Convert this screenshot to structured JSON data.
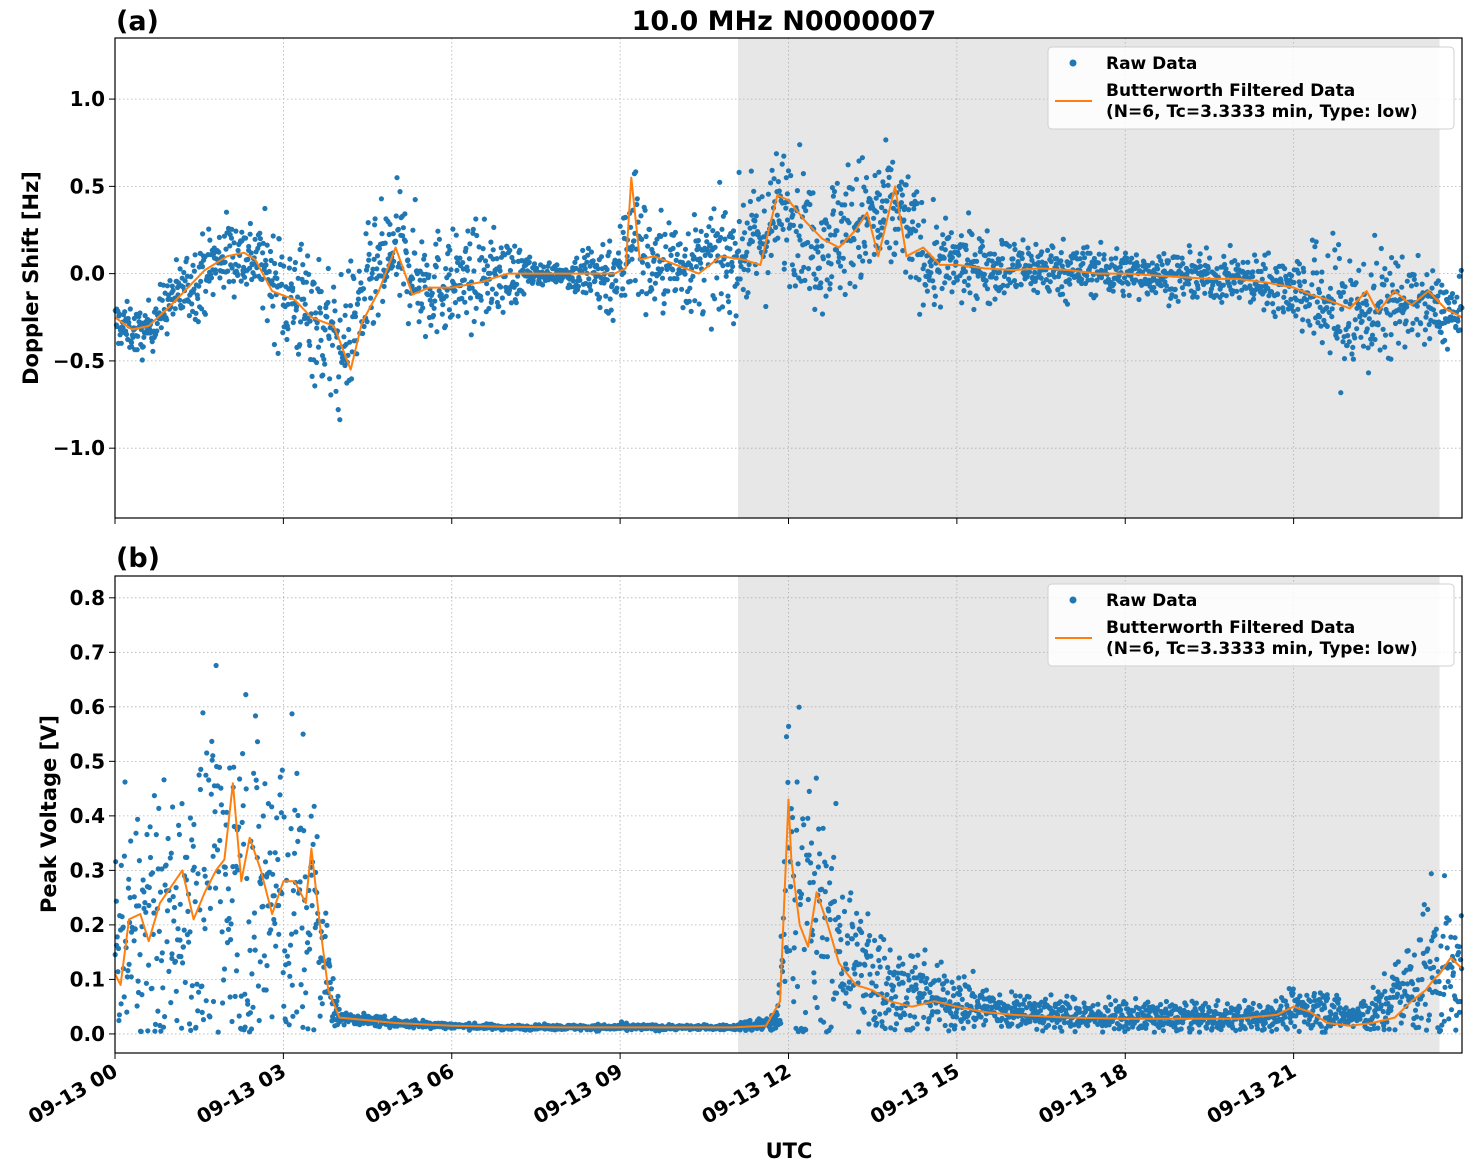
{
  "figure": {
    "title": "10.0 MHz N0000007",
    "xlabel": "UTC",
    "colors": {
      "raw": "#1f77b4",
      "filtered": "#ff7f0e",
      "shade": "#e7e7e7",
      "grid": "#b0b0b0"
    }
  },
  "chart_data": [
    {
      "type": "scatter",
      "panel_label": "(a)",
      "ylabel": "Doppler Shift [Hz]",
      "xlim": [
        0,
        24
      ],
      "ylim": [
        -1.4,
        1.35
      ],
      "yticks": [
        1.0,
        0.5,
        0.0,
        -0.5,
        -1.0
      ],
      "ytick_labels": [
        "1.0",
        "0.5",
        "0.0",
        "−0.5",
        "−1.0"
      ],
      "xticks": [
        0,
        3,
        6,
        9,
        12,
        15,
        18,
        21
      ],
      "xtick_labels": [
        "09-13 00",
        "09-13 03",
        "09-13 06",
        "09-13 09",
        "09-13 12",
        "09-13 15",
        "09-13 18",
        "09-13 21"
      ],
      "shaded_span": [
        11.1,
        23.6
      ],
      "grid": true,
      "legend": {
        "position": "top-right",
        "entries": [
          "Raw Data",
          "Butterworth Filtered Data\n(N=6, Tc=3.3333 min, Type: low)"
        ]
      },
      "series": [
        {
          "name": "Raw Data",
          "style": "points",
          "x": [
            0,
            0.5,
            1.0,
            1.5,
            2.0,
            2.5,
            3.0,
            3.5,
            4.0,
            4.5,
            5.0,
            5.5,
            6.0,
            6.5,
            7.0,
            7.5,
            8.0,
            8.5,
            9.0,
            9.2,
            9.5,
            10.0,
            10.5,
            11.0,
            11.5,
            12.0,
            12.5,
            13.0,
            13.5,
            14.0,
            14.5,
            15.0,
            15.5,
            16.0,
            16.5,
            17.0,
            17.5,
            18.0,
            18.5,
            19.0,
            19.5,
            20.0,
            20.5,
            21.0,
            21.5,
            22.0,
            22.5,
            23.0,
            23.5,
            24.0
          ],
          "y_mean": [
            -0.28,
            -0.35,
            -0.15,
            -0.02,
            0.12,
            0.1,
            -0.1,
            -0.2,
            -0.45,
            -0.1,
            0.15,
            -0.05,
            -0.05,
            -0.02,
            0.0,
            0.0,
            0.0,
            -0.01,
            0.0,
            0.3,
            0.05,
            0.05,
            0.05,
            0.1,
            0.2,
            0.4,
            0.15,
            0.25,
            0.3,
            0.35,
            0.05,
            0.05,
            0.05,
            0.03,
            0.03,
            0.02,
            0.02,
            0.0,
            0.0,
            -0.02,
            -0.02,
            -0.03,
            -0.05,
            -0.08,
            -0.15,
            -0.25,
            -0.2,
            -0.15,
            -0.2,
            -0.25
          ],
          "y_spread": [
            0.12,
            0.12,
            0.15,
            0.2,
            0.2,
            0.2,
            0.3,
            0.35,
            0.35,
            0.3,
            0.3,
            0.3,
            0.25,
            0.25,
            0.2,
            0.05,
            0.05,
            0.2,
            0.25,
            0.45,
            0.25,
            0.25,
            0.25,
            0.3,
            0.3,
            0.35,
            0.3,
            0.35,
            0.35,
            0.3,
            0.25,
            0.2,
            0.18,
            0.15,
            0.15,
            0.14,
            0.13,
            0.12,
            0.12,
            0.12,
            0.12,
            0.12,
            0.14,
            0.18,
            0.3,
            0.4,
            0.3,
            0.22,
            0.18,
            0.18
          ]
        },
        {
          "name": "Butterworth Filtered Data",
          "style": "line",
          "x": [
            0,
            0.3,
            0.6,
            1.0,
            1.3,
            1.6,
            2.0,
            2.3,
            2.5,
            2.8,
            3.2,
            3.5,
            3.9,
            4.2,
            4.4,
            4.7,
            5.0,
            5.3,
            5.6,
            6.0,
            6.5,
            7.0,
            7.5,
            8.0,
            8.5,
            8.9,
            9.1,
            9.2,
            9.35,
            9.6,
            10.0,
            10.4,
            10.8,
            11.2,
            11.5,
            11.8,
            12.0,
            12.3,
            12.6,
            12.9,
            13.2,
            13.4,
            13.6,
            13.9,
            14.1,
            14.4,
            14.7,
            15.0,
            15.5,
            16.0,
            16.5,
            17.0,
            17.5,
            18.0,
            18.5,
            19.0,
            19.5,
            20.0,
            20.5,
            21.0,
            21.3,
            21.6,
            22.0,
            22.3,
            22.5,
            22.8,
            23.1,
            23.4,
            23.7,
            24.0
          ],
          "y": [
            -0.25,
            -0.32,
            -0.3,
            -0.18,
            -0.08,
            0.02,
            0.1,
            0.12,
            0.08,
            -0.1,
            -0.15,
            -0.25,
            -0.3,
            -0.55,
            -0.28,
            -0.1,
            0.15,
            -0.12,
            -0.08,
            -0.08,
            -0.05,
            0.0,
            0.0,
            0.0,
            0.0,
            0.0,
            0.03,
            0.55,
            0.08,
            0.1,
            0.05,
            0.0,
            0.1,
            0.08,
            0.05,
            0.45,
            0.42,
            0.3,
            0.2,
            0.15,
            0.25,
            0.35,
            0.1,
            0.5,
            0.1,
            0.15,
            0.05,
            0.05,
            0.03,
            0.02,
            0.03,
            0.02,
            0.0,
            0.0,
            -0.01,
            -0.02,
            -0.03,
            -0.03,
            -0.05,
            -0.08,
            -0.12,
            -0.15,
            -0.2,
            -0.1,
            -0.22,
            -0.1,
            -0.18,
            -0.1,
            -0.2,
            -0.25
          ]
        }
      ]
    },
    {
      "type": "scatter",
      "panel_label": "(b)",
      "ylabel": "Peak Voltage [V]",
      "xlim": [
        0,
        24
      ],
      "ylim": [
        -0.035,
        0.84
      ],
      "yticks": [
        0.8,
        0.7,
        0.6,
        0.5,
        0.4,
        0.3,
        0.2,
        0.1,
        0.0
      ],
      "ytick_labels": [
        "0.8",
        "0.7",
        "0.6",
        "0.5",
        "0.4",
        "0.3",
        "0.2",
        "0.1",
        "0.0"
      ],
      "xticks": [
        0,
        3,
        6,
        9,
        12,
        15,
        18,
        21
      ],
      "xtick_labels": [
        "09-13 00",
        "09-13 03",
        "09-13 06",
        "09-13 09",
        "09-13 12",
        "09-13 15",
        "09-13 18",
        "09-13 21"
      ],
      "shaded_span": [
        11.1,
        23.6
      ],
      "grid": true,
      "legend": {
        "position": "top-right",
        "entries": [
          "Raw Data",
          "Butterworth Filtered Data\n(N=6, Tc=3.3333 min, Type: low)"
        ]
      },
      "series": [
        {
          "name": "Raw Data",
          "style": "points",
          "x": [
            0,
            0.5,
            1.0,
            1.5,
            2.0,
            2.5,
            3.0,
            3.5,
            3.8,
            4.0,
            5.0,
            6.0,
            7.0,
            8.0,
            9.0,
            10.0,
            11.0,
            11.8,
            12.0,
            12.3,
            12.6,
            13.0,
            13.5,
            14.0,
            14.5,
            15.0,
            15.5,
            16.0,
            17.0,
            18.0,
            19.0,
            20.0,
            21.0,
            21.5,
            22.0,
            22.5,
            23.0,
            23.5,
            24.0
          ],
          "y_mean": [
            0.18,
            0.2,
            0.22,
            0.25,
            0.28,
            0.26,
            0.25,
            0.22,
            0.1,
            0.03,
            0.02,
            0.015,
            0.012,
            0.012,
            0.012,
            0.012,
            0.012,
            0.02,
            0.3,
            0.25,
            0.2,
            0.15,
            0.1,
            0.08,
            0.07,
            0.06,
            0.05,
            0.04,
            0.035,
            0.03,
            0.03,
            0.03,
            0.04,
            0.05,
            0.03,
            0.04,
            0.08,
            0.12,
            0.1
          ],
          "y_spread": [
            0.15,
            0.2,
            0.22,
            0.25,
            0.3,
            0.3,
            0.28,
            0.25,
            0.1,
            0.01,
            0.008,
            0.005,
            0.004,
            0.004,
            0.006,
            0.004,
            0.004,
            0.02,
            0.3,
            0.25,
            0.2,
            0.15,
            0.1,
            0.08,
            0.06,
            0.05,
            0.04,
            0.03,
            0.03,
            0.025,
            0.025,
            0.025,
            0.03,
            0.04,
            0.02,
            0.04,
            0.08,
            0.15,
            0.1
          ]
        },
        {
          "name": "Butterworth Filtered Data",
          "style": "line",
          "x": [
            0,
            0.1,
            0.25,
            0.45,
            0.6,
            0.8,
            1.0,
            1.2,
            1.4,
            1.6,
            1.8,
            1.95,
            2.1,
            2.25,
            2.4,
            2.6,
            2.8,
            3.0,
            3.2,
            3.4,
            3.5,
            3.65,
            3.8,
            4.0,
            4.5,
            5.0,
            6.0,
            7.0,
            8.0,
            9.0,
            10.0,
            11.0,
            11.6,
            11.85,
            12.0,
            12.05,
            12.2,
            12.35,
            12.5,
            12.7,
            12.9,
            13.2,
            13.5,
            13.8,
            14.2,
            14.6,
            15.0,
            15.5,
            16.0,
            17.0,
            18.0,
            19.0,
            20.0,
            20.7,
            21.0,
            21.3,
            21.6,
            22.0,
            22.4,
            22.8,
            23.1,
            23.35,
            23.5,
            23.6,
            23.8,
            24.0
          ],
          "y": [
            0.11,
            0.09,
            0.21,
            0.22,
            0.17,
            0.24,
            0.27,
            0.3,
            0.21,
            0.26,
            0.3,
            0.32,
            0.46,
            0.28,
            0.36,
            0.3,
            0.22,
            0.28,
            0.28,
            0.24,
            0.34,
            0.2,
            0.08,
            0.03,
            0.025,
            0.02,
            0.015,
            0.013,
            0.012,
            0.012,
            0.012,
            0.012,
            0.015,
            0.06,
            0.43,
            0.32,
            0.2,
            0.16,
            0.26,
            0.2,
            0.13,
            0.09,
            0.08,
            0.06,
            0.05,
            0.06,
            0.05,
            0.04,
            0.035,
            0.03,
            0.028,
            0.028,
            0.028,
            0.035,
            0.05,
            0.04,
            0.02,
            0.015,
            0.02,
            0.03,
            0.06,
            0.08,
            0.1,
            0.11,
            0.14,
            0.12
          ]
        }
      ]
    }
  ]
}
